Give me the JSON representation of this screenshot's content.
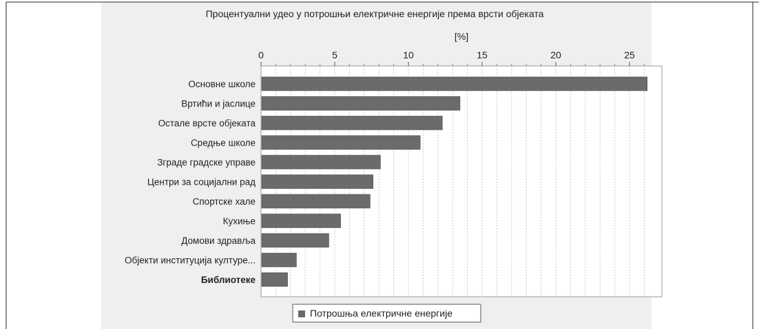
{
  "chart_data": {
    "type": "bar",
    "orientation": "horizontal",
    "title": "Процентуални удео у потрошњи електричне енергије према врсти објеката",
    "xlabel": "[%]",
    "xlim": [
      0,
      27
    ],
    "xticks": [
      0,
      5,
      10,
      15,
      20,
      25
    ],
    "grid": true,
    "legend_position": "bottom",
    "categories": [
      "Основне школе",
      "Вртићи и јаслице",
      "Остале врсте објеката",
      "Средње школе",
      "Зграде градске управе",
      "Центри за социјални рад",
      "Спортске хале",
      "Кухиње",
      "Домови здравља",
      "Објекти институција културе...",
      "Библиотеке"
    ],
    "series": [
      {
        "name": "Потрошња електричне енергије",
        "color": "#6b6b6b",
        "values": [
          26.2,
          13.5,
          12.3,
          10.8,
          8.1,
          7.6,
          7.4,
          5.4,
          4.6,
          2.4,
          1.8
        ]
      }
    ]
  }
}
